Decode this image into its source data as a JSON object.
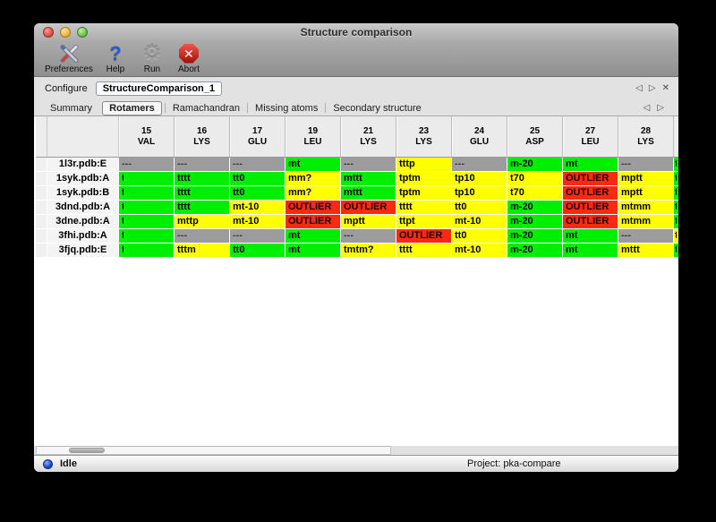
{
  "window": {
    "title": "Structure comparison"
  },
  "toolbar": {
    "items": [
      {
        "label": "Preferences",
        "icon": "tools-icon"
      },
      {
        "label": "Help",
        "icon": "question-mark-icon",
        "glyph": "?"
      },
      {
        "label": "Run",
        "icon": "gear-icon",
        "glyph": "⚙"
      },
      {
        "label": "Abort",
        "icon": "stop-octagon-icon",
        "glyph": "✕"
      }
    ]
  },
  "configure": {
    "label": "Configure",
    "value": "StructureComparison_1",
    "nav_back": "◁",
    "nav_forward": "▷",
    "nav_close": "✕"
  },
  "tabs": {
    "active": "Rotamers",
    "items": [
      {
        "label": "Summary"
      },
      {
        "label": "Rotamers"
      },
      {
        "label": "Ramachandran"
      },
      {
        "label": "Missing atoms"
      },
      {
        "label": "Secondary structure"
      }
    ],
    "nav_back": "◁",
    "nav_forward": "▷"
  },
  "colors": {
    "green": "#00ef00",
    "yellow": "#ffff00",
    "red": "#fa2a12",
    "gray": "#9c9c9c"
  },
  "table": {
    "columns": [
      {
        "num": "15",
        "res": "VAL"
      },
      {
        "num": "16",
        "res": "LYS"
      },
      {
        "num": "17",
        "res": "GLU"
      },
      {
        "num": "19",
        "res": "LEU"
      },
      {
        "num": "21",
        "res": "LYS"
      },
      {
        "num": "23",
        "res": "LYS"
      },
      {
        "num": "24",
        "res": "GLU"
      },
      {
        "num": "25",
        "res": "ASP"
      },
      {
        "num": "27",
        "res": "LEU"
      },
      {
        "num": "28",
        "res": "LYS"
      }
    ],
    "rows": [
      {
        "label": "1l3r.pdb:E",
        "cells": [
          {
            "t": "---",
            "c": "gray"
          },
          {
            "t": "---",
            "c": "gray"
          },
          {
            "t": "---",
            "c": "gray"
          },
          {
            "t": "mt",
            "c": "green"
          },
          {
            "t": "---",
            "c": "gray"
          },
          {
            "t": "tttp",
            "c": "yellow"
          },
          {
            "t": "---",
            "c": "gray"
          },
          {
            "t": "m-20",
            "c": "green"
          },
          {
            "t": "mt",
            "c": "green"
          },
          {
            "t": "---",
            "c": "gray"
          }
        ],
        "partial": {
          "t": "t",
          "c": "green"
        }
      },
      {
        "label": "1syk.pdb:A",
        "cells": [
          {
            "t": "t",
            "c": "green",
            "clip": true
          },
          {
            "t": "tttt",
            "c": "green"
          },
          {
            "t": "tt0",
            "c": "green"
          },
          {
            "t": "mm?",
            "c": "yellow"
          },
          {
            "t": "mttt",
            "c": "green"
          },
          {
            "t": "tptm",
            "c": "yellow"
          },
          {
            "t": "tp10",
            "c": "yellow"
          },
          {
            "t": "t70",
            "c": "yellow"
          },
          {
            "t": "OUTLIER",
            "c": "red"
          },
          {
            "t": "mptt",
            "c": "yellow"
          }
        ],
        "partial": {
          "t": "t",
          "c": "green"
        }
      },
      {
        "label": "1syk.pdb:B",
        "cells": [
          {
            "t": "t",
            "c": "green",
            "clip": true
          },
          {
            "t": "tttt",
            "c": "green"
          },
          {
            "t": "tt0",
            "c": "green"
          },
          {
            "t": "mm?",
            "c": "yellow"
          },
          {
            "t": "mttt",
            "c": "green"
          },
          {
            "t": "tptm",
            "c": "yellow"
          },
          {
            "t": "tp10",
            "c": "yellow"
          },
          {
            "t": "t70",
            "c": "yellow"
          },
          {
            "t": "OUTLIER",
            "c": "red"
          },
          {
            "t": "mptt",
            "c": "yellow"
          }
        ],
        "partial": {
          "t": "t",
          "c": "green"
        }
      },
      {
        "label": "3dnd.pdb:A",
        "cells": [
          {
            "t": "t",
            "c": "green",
            "clip": true
          },
          {
            "t": "tttt",
            "c": "green"
          },
          {
            "t": "mt-10",
            "c": "yellow"
          },
          {
            "t": "OUTLIER",
            "c": "red"
          },
          {
            "t": "OUTLIER",
            "c": "red"
          },
          {
            "t": "tttt",
            "c": "yellow"
          },
          {
            "t": "tt0",
            "c": "yellow"
          },
          {
            "t": "m-20",
            "c": "green"
          },
          {
            "t": "OUTLIER",
            "c": "red"
          },
          {
            "t": "mtmm",
            "c": "yellow"
          }
        ],
        "partial": {
          "t": "t",
          "c": "green"
        }
      },
      {
        "label": "3dne.pdb:A",
        "cells": [
          {
            "t": "t",
            "c": "green",
            "clip": true
          },
          {
            "t": "mttp",
            "c": "yellow"
          },
          {
            "t": "mt-10",
            "c": "yellow"
          },
          {
            "t": "OUTLIER",
            "c": "red"
          },
          {
            "t": "mptt",
            "c": "yellow"
          },
          {
            "t": "ttpt",
            "c": "yellow"
          },
          {
            "t": "mt-10",
            "c": "yellow"
          },
          {
            "t": "m-20",
            "c": "green"
          },
          {
            "t": "OUTLIER",
            "c": "red"
          },
          {
            "t": "mtmm",
            "c": "yellow"
          }
        ],
        "partial": {
          "t": "t",
          "c": "green"
        }
      },
      {
        "label": "3fhi.pdb:A",
        "cells": [
          {
            "t": "t",
            "c": "green",
            "clip": true
          },
          {
            "t": "---",
            "c": "gray"
          },
          {
            "t": "---",
            "c": "gray"
          },
          {
            "t": "mt",
            "c": "green"
          },
          {
            "t": "---",
            "c": "gray"
          },
          {
            "t": "OUTLIER",
            "c": "red"
          },
          {
            "t": "tt0",
            "c": "yellow"
          },
          {
            "t": "m-20",
            "c": "green"
          },
          {
            "t": "mt",
            "c": "green"
          },
          {
            "t": "---",
            "c": "gray"
          }
        ],
        "partial": {
          "t": "t",
          "c": "yellow"
        }
      },
      {
        "label": "3fjq.pdb:E",
        "cells": [
          {
            "t": "t",
            "c": "green",
            "clip": true
          },
          {
            "t": "tttm",
            "c": "yellow"
          },
          {
            "t": "tt0",
            "c": "green"
          },
          {
            "t": "mt",
            "c": "green"
          },
          {
            "t": "tmtm?",
            "c": "yellow"
          },
          {
            "t": "tttt",
            "c": "yellow"
          },
          {
            "t": "mt-10",
            "c": "yellow"
          },
          {
            "t": "m-20",
            "c": "green"
          },
          {
            "t": "mt",
            "c": "green"
          },
          {
            "t": "mttt",
            "c": "yellow"
          }
        ],
        "partial": {
          "t": "t",
          "c": "green"
        }
      }
    ]
  },
  "statusbar": {
    "status": "Idle",
    "project": "Project: pka-compare"
  }
}
